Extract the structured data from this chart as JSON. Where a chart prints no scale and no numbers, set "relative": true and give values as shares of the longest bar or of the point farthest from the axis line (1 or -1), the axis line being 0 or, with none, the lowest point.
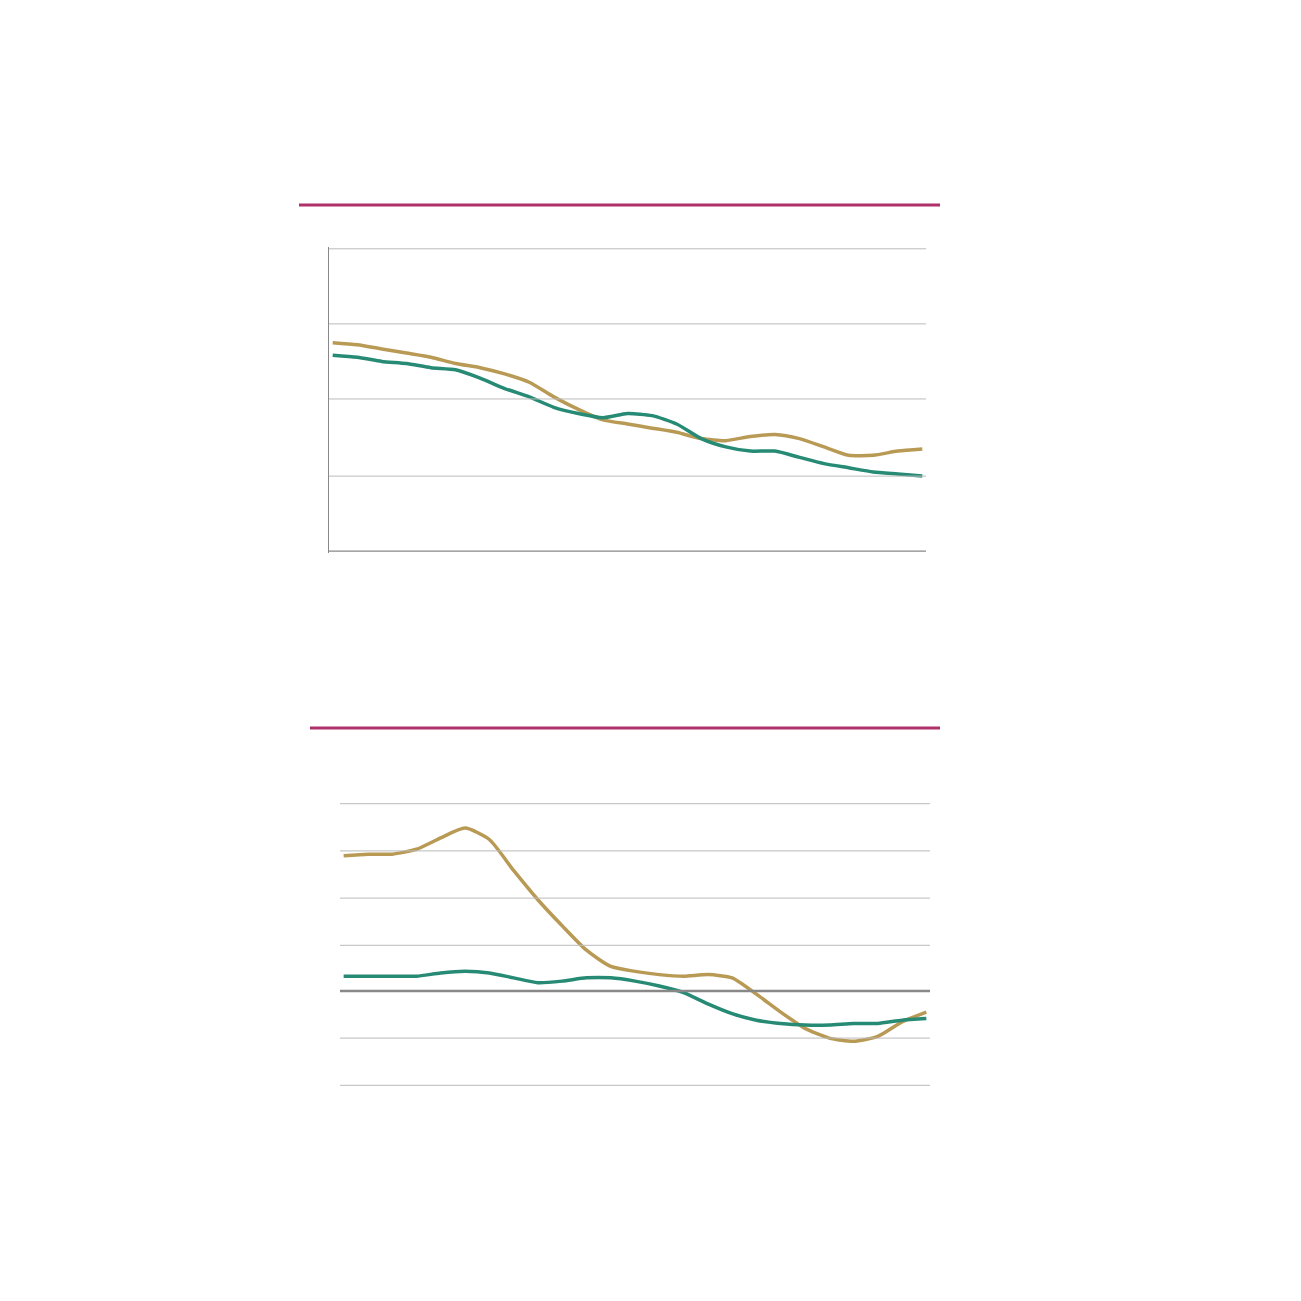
{
  "chart_data": [
    {
      "type": "line",
      "relative": true,
      "categories": [
        null,
        null,
        null,
        null,
        null,
        null,
        null,
        null,
        null,
        null,
        null,
        null,
        null,
        null,
        null,
        null,
        null,
        null,
        null,
        null,
        null,
        null,
        null,
        null,
        null
      ],
      "series": [
        {
          "color": "#b89a55",
          "values": [
            1.0,
            0.99,
            0.97,
            0.95,
            0.93,
            0.9,
            0.88,
            0.85,
            0.81,
            0.74,
            0.68,
            0.63,
            0.61,
            0.59,
            0.57,
            0.54,
            0.53,
            0.55,
            0.56,
            0.54,
            0.5,
            0.46,
            0.46,
            0.48,
            0.49
          ]
        },
        {
          "color": "#268a74",
          "values": [
            0.94,
            0.93,
            0.91,
            0.9,
            0.88,
            0.87,
            0.83,
            0.78,
            0.74,
            0.69,
            0.66,
            0.64,
            0.66,
            0.65,
            0.61,
            0.54,
            0.5,
            0.48,
            0.48,
            0.45,
            0.42,
            0.4,
            0.38,
            0.37,
            0.36
          ]
        }
      ],
      "ref_lines": [
        {
          "axis": "y",
          "value": 1.45,
          "color": "#bbbbbb"
        },
        {
          "axis": "y",
          "value": 1.09,
          "color": "#bbbbbb"
        },
        {
          "axis": "y",
          "value": 0.73,
          "color": "#bbbbbb"
        },
        {
          "axis": "y",
          "value": 0.36,
          "color": "#bbbbbb"
        }
      ]
    },
    {
      "type": "line",
      "relative": true,
      "categories": [
        null,
        null,
        null,
        null,
        null,
        null,
        null,
        null,
        null,
        null,
        null,
        null,
        null,
        null,
        null,
        null,
        null,
        null,
        null,
        null,
        null,
        null,
        null,
        null,
        null
      ],
      "series": [
        {
          "color": "#b89a55",
          "values": [
            0.83,
            0.84,
            0.84,
            0.87,
            0.94,
            1.0,
            0.93,
            0.74,
            0.56,
            0.4,
            0.25,
            0.15,
            0.12,
            0.1,
            0.09,
            0.1,
            0.08,
            -0.02,
            -0.13,
            -0.23,
            -0.29,
            -0.31,
            -0.28,
            -0.19,
            -0.13
          ]
        },
        {
          "color": "#268a74",
          "values": [
            0.09,
            0.09,
            0.09,
            0.09,
            0.11,
            0.12,
            0.11,
            0.08,
            0.05,
            0.06,
            0.08,
            0.08,
            0.06,
            0.03,
            -0.01,
            -0.08,
            -0.14,
            -0.18,
            -0.2,
            -0.21,
            -0.21,
            -0.2,
            -0.2,
            -0.18,
            -0.17
          ]
        }
      ],
      "ref_lines": [
        {
          "axis": "y",
          "value": 1.15,
          "color": "#bbbbbb"
        },
        {
          "axis": "y",
          "value": 0.86,
          "color": "#bbbbbb"
        },
        {
          "axis": "y",
          "value": 0.57,
          "color": "#bbbbbb"
        },
        {
          "axis": "y",
          "value": 0.28,
          "color": "#bbbbbb"
        },
        {
          "axis": "y",
          "value": -0.29,
          "color": "#bbbbbb"
        },
        {
          "axis": "y",
          "value": -0.58,
          "color": "#bbbbbb"
        }
      ]
    }
  ]
}
